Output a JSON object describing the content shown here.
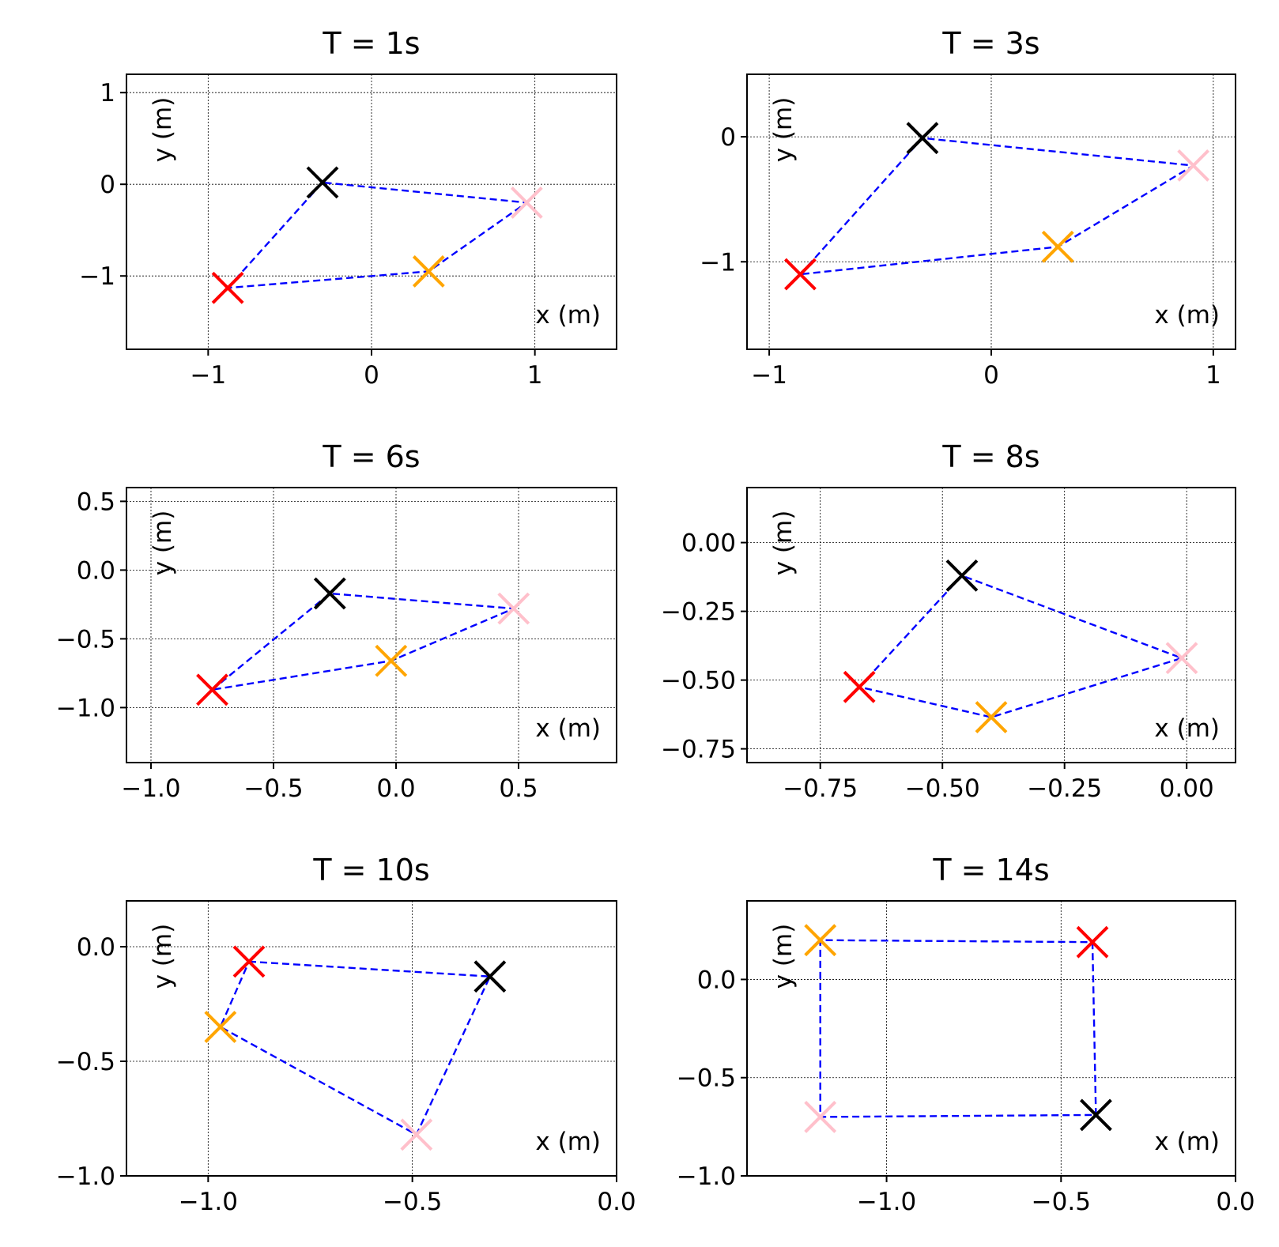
{
  "chart_data": [
    {
      "type": "scatter",
      "title": "T = 1s",
      "xlabel": "x (m)",
      "ylabel": "y (m)",
      "xlim": [
        -1.5,
        1.5
      ],
      "ylim": [
        -1.8,
        1.2
      ],
      "xticks": [
        -1,
        0,
        1
      ],
      "xtick_labels": [
        "−1",
        "0",
        "1"
      ],
      "yticks": [
        -1,
        0,
        1
      ],
      "ytick_labels": [
        "−1",
        "0",
        "1"
      ],
      "grid": true,
      "points": [
        {
          "name": "black",
          "color": "#000000",
          "x": -0.3,
          "y": 0.02
        },
        {
          "name": "pink",
          "color": "#ffc0cb",
          "x": 0.95,
          "y": -0.2
        },
        {
          "name": "orange",
          "color": "#ffa500",
          "x": 0.35,
          "y": -0.95
        },
        {
          "name": "red",
          "color": "#ff0000",
          "x": -0.88,
          "y": -1.13
        }
      ],
      "path": [
        "red",
        "black",
        "pink",
        "orange",
        "red"
      ]
    },
    {
      "type": "scatter",
      "title": "T = 3s",
      "xlabel": "x (m)",
      "ylabel": "y (m)",
      "xlim": [
        -1.1,
        1.1
      ],
      "ylim": [
        -1.7,
        0.5
      ],
      "xticks": [
        -1,
        0,
        1
      ],
      "xtick_labels": [
        "−1",
        "0",
        "1"
      ],
      "yticks": [
        -1,
        0
      ],
      "ytick_labels": [
        "−1",
        "0"
      ],
      "grid": true,
      "points": [
        {
          "name": "black",
          "color": "#000000",
          "x": -0.31,
          "y": -0.01
        },
        {
          "name": "pink",
          "color": "#ffc0cb",
          "x": 0.91,
          "y": -0.23
        },
        {
          "name": "orange",
          "color": "#ffa500",
          "x": 0.3,
          "y": -0.88
        },
        {
          "name": "red",
          "color": "#ff0000",
          "x": -0.86,
          "y": -1.1
        }
      ],
      "path": [
        "red",
        "black",
        "pink",
        "orange",
        "red"
      ]
    },
    {
      "type": "scatter",
      "title": "T = 6s",
      "xlabel": "x (m)",
      "ylabel": "y (m)",
      "xlim": [
        -1.1,
        0.9
      ],
      "ylim": [
        -1.4,
        0.6
      ],
      "xticks": [
        -1.0,
        -0.5,
        0.0,
        0.5
      ],
      "xtick_labels": [
        "−1.0",
        "−0.5",
        "0.0",
        "0.5"
      ],
      "yticks": [
        0.5,
        0.0,
        -0.5,
        -1.0
      ],
      "ytick_labels": [
        "0.5",
        "0.0",
        "−0.5",
        "−1.0"
      ],
      "grid": true,
      "points": [
        {
          "name": "black",
          "color": "#000000",
          "x": -0.27,
          "y": -0.17
        },
        {
          "name": "pink",
          "color": "#ffc0cb",
          "x": 0.48,
          "y": -0.28
        },
        {
          "name": "orange",
          "color": "#ffa500",
          "x": -0.02,
          "y": -0.66
        },
        {
          "name": "red",
          "color": "#ff0000",
          "x": -0.75,
          "y": -0.87
        }
      ],
      "path": [
        "red",
        "black",
        "pink",
        "orange",
        "red"
      ]
    },
    {
      "type": "scatter",
      "title": "T = 8s",
      "xlabel": "x (m)",
      "ylabel": "y (m)",
      "xlim": [
        -0.9,
        0.1
      ],
      "ylim": [
        -0.8,
        0.2
      ],
      "xticks": [
        -0.75,
        -0.5,
        -0.25,
        0.0
      ],
      "xtick_labels": [
        "−0.75",
        "−0.50",
        "−0.25",
        "0.00"
      ],
      "yticks": [
        0.0,
        -0.25,
        -0.5,
        -0.75
      ],
      "ytick_labels": [
        "0.00",
        "−0.25",
        "−0.50",
        "−0.75"
      ],
      "grid": true,
      "points": [
        {
          "name": "black",
          "color": "#000000",
          "x": -0.46,
          "y": -0.12
        },
        {
          "name": "pink",
          "color": "#ffc0cb",
          "x": -0.01,
          "y": -0.42
        },
        {
          "name": "orange",
          "color": "#ffa500",
          "x": -0.4,
          "y": -0.635
        },
        {
          "name": "red",
          "color": "#ff0000",
          "x": -0.67,
          "y": -0.525
        }
      ],
      "path": [
        "red",
        "black",
        "pink",
        "orange",
        "red"
      ]
    },
    {
      "type": "scatter",
      "title": "T = 10s",
      "xlabel": "x (m)",
      "ylabel": "y (m)",
      "xlim": [
        -1.2,
        0.0
      ],
      "ylim": [
        -1.0,
        0.2
      ],
      "xticks": [
        -1.0,
        -0.5,
        0.0
      ],
      "xtick_labels": [
        "−1.0",
        "−0.5",
        "0.0"
      ],
      "yticks": [
        0.0,
        -0.5,
        -1.0
      ],
      "ytick_labels": [
        "0.0",
        "−0.5",
        "−1.0"
      ],
      "grid": true,
      "points": [
        {
          "name": "black",
          "color": "#000000",
          "x": -0.31,
          "y": -0.13
        },
        {
          "name": "pink",
          "color": "#ffc0cb",
          "x": -0.49,
          "y": -0.82
        },
        {
          "name": "orange",
          "color": "#ffa500",
          "x": -0.97,
          "y": -0.35
        },
        {
          "name": "red",
          "color": "#ff0000",
          "x": -0.9,
          "y": -0.065
        }
      ],
      "path": [
        "red",
        "black",
        "pink",
        "orange",
        "red"
      ]
    },
    {
      "type": "scatter",
      "title": "T = 14s",
      "xlabel": "x (m)",
      "ylabel": "y (m)",
      "xlim": [
        -1.4,
        0.0
      ],
      "ylim": [
        -1.0,
        0.4
      ],
      "xticks": [
        -1.0,
        -0.5,
        0.0
      ],
      "xtick_labels": [
        "−1.0",
        "−0.5",
        "0.0"
      ],
      "yticks": [
        0.0,
        -0.5,
        -1.0
      ],
      "ytick_labels": [
        "0.0",
        "−0.5",
        "−1.0"
      ],
      "grid": true,
      "points": [
        {
          "name": "black",
          "color": "#000000",
          "x": -0.4,
          "y": -0.69
        },
        {
          "name": "pink",
          "color": "#ffc0cb",
          "x": -1.19,
          "y": -0.7
        },
        {
          "name": "orange",
          "color": "#ffa500",
          "x": -1.19,
          "y": 0.2
        },
        {
          "name": "red",
          "color": "#ff0000",
          "x": -0.41,
          "y": 0.19
        }
      ],
      "path": [
        "red",
        "black",
        "pink",
        "orange",
        "red"
      ]
    }
  ],
  "style": {
    "path_color": "#0000ff",
    "axis_color": "#000000",
    "grid_color": "#000000"
  }
}
